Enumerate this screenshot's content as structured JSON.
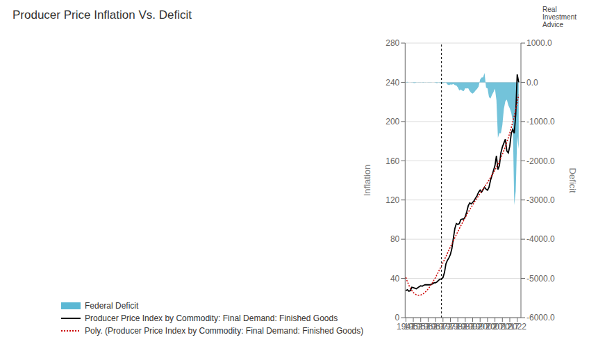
{
  "chart_data": {
    "type": "line",
    "title": "Producer Price Inflation Vs. Deficit",
    "ylabel": "Inflation",
    "y2label": "Deficit",
    "xlim": [
      1946.5,
      2024.5
    ],
    "xticks": [
      1947,
      1952,
      1957,
      1962,
      1967,
      1972,
      1977,
      1982,
      1987,
      1992,
      1997,
      2002,
      2007,
      2012,
      2017,
      2022
    ],
    "ylim": [
      0,
      280
    ],
    "yticks": [
      0,
      40,
      80,
      120,
      160,
      200,
      240,
      280
    ],
    "y2lim": [
      -6000,
      1000
    ],
    "y2ticks": [
      {
        "value": 1000,
        "label": "1000.0"
      },
      {
        "value": 0,
        "label": "0.0"
      },
      {
        "value": -1000,
        "label": "-1000.0"
      },
      {
        "value": -2000,
        "label": "-2000.0"
      },
      {
        "value": -3000,
        "label": "-3000.0"
      },
      {
        "value": -4000,
        "label": "-4000.0"
      },
      {
        "value": -5000,
        "label": "-5000.0"
      },
      {
        "value": -6000,
        "label": "-6000.0"
      }
    ],
    "grid": true,
    "legend": "lower left",
    "vline": 1971,
    "annotations": [
      "Real\nInvestment\nAdvice"
    ],
    "x": [
      1947,
      1948,
      1949,
      1950,
      1951,
      1952,
      1953,
      1954,
      1955,
      1956,
      1957,
      1958,
      1959,
      1960,
      1961,
      1962,
      1963,
      1964,
      1965,
      1966,
      1967,
      1968,
      1969,
      1970,
      1971,
      1972,
      1973,
      1974,
      1975,
      1976,
      1977,
      1978,
      1979,
      1980,
      1981,
      1982,
      1983,
      1984,
      1985,
      1986,
      1987,
      1988,
      1989,
      1990,
      1991,
      1992,
      1993,
      1994,
      1995,
      1996,
      1997,
      1998,
      1999,
      2000,
      2001,
      2002,
      2003,
      2004,
      2005,
      2006,
      2007,
      2008,
      2009,
      2010,
      2011,
      2012,
      2013,
      2014,
      2015,
      2016,
      2017,
      2018,
      2019,
      2020,
      2021,
      2022,
      2023
    ],
    "series": [
      {
        "name": "Federal Deficit",
        "type": "area",
        "axis": "y2",
        "color": "#5bb8d4",
        "values": [
          4,
          12,
          0,
          -2,
          5,
          -14,
          -20,
          -5,
          3,
          4,
          3,
          -6,
          -12,
          1,
          -3,
          -7,
          -6,
          -6,
          -1,
          -3,
          -8,
          -25,
          8,
          -23,
          -23,
          -23,
          -15,
          -6,
          -53,
          -74,
          -54,
          -59,
          -41,
          -74,
          -79,
          -128,
          -208,
          -185,
          -212,
          -221,
          -150,
          -155,
          -153,
          -221,
          -269,
          -290,
          -255,
          -203,
          -164,
          -107,
          69,
          125,
          126,
          236,
          -133,
          -158,
          -378,
          -413,
          -319,
          -248,
          -161,
          -459,
          -1413,
          -1294,
          -1299,
          -1087,
          -680,
          -485,
          -442,
          -585,
          -665,
          -779,
          -984,
          -3131,
          -2775,
          -1375,
          -1700
        ]
      },
      {
        "name": "Producer Price Index by Commodity: Final Demand: Finished Goods",
        "type": "line",
        "color": "#000000",
        "values": [
          27.5,
          28.5,
          27.0,
          27.5,
          31.0,
          30.5,
          30.0,
          29.5,
          30.5,
          31.5,
          32.5,
          32.0,
          33.0,
          33.5,
          33.5,
          33.5,
          33.5,
          34.0,
          34.5,
          35.5,
          35.5,
          36.5,
          38.0,
          39.3,
          39.5,
          41.0,
          46.0,
          55.0,
          58.5,
          61.0,
          64.5,
          70.5,
          81.0,
          91.0,
          96.0,
          95.0,
          96.0,
          100.0,
          100.5,
          100.5,
          103.0,
          108.0,
          114.0,
          117.0,
          116.0,
          117.5,
          119.5,
          122.0,
          124.5,
          128.0,
          130.0,
          128.0,
          130.5,
          133.0,
          131.0,
          130.0,
          133.0,
          140.0,
          145.0,
          150.0,
          155.0,
          165.0,
          151.0,
          155.0,
          168.0,
          174.0,
          178.0,
          182.0,
          170.0,
          168.0,
          175.0,
          188.0,
          192.0,
          188.0,
          207.0,
          248.0,
          240.0
        ]
      },
      {
        "name": "Poly. (Producer Price Index by Commodity: Final Demand: Finished Goods)",
        "type": "line",
        "color": "#cc0000",
        "line_style": "dotted",
        "values": [
          41.03,
          36.76,
          33.13,
          30.11,
          27.65,
          25.74,
          24.32,
          23.38,
          22.88,
          22.79,
          23.08,
          23.72,
          24.69,
          25.96,
          27.5,
          29.29,
          31.3,
          33.52,
          35.92,
          38.47,
          41.17,
          43.99,
          46.91,
          49.91,
          52.99,
          56.12,
          59.29,
          62.49,
          65.7,
          68.91,
          72.12,
          75.31,
          78.47,
          81.6,
          84.69,
          87.73,
          90.72,
          93.65,
          96.53,
          99.35,
          102.1,
          104.79,
          107.42,
          110.0,
          112.51,
          114.97,
          117.38,
          119.75,
          122.08,
          124.38,
          126.66,
          128.92,
          131.18,
          133.45,
          135.74,
          138.06,
          140.43,
          142.86,
          145.37,
          147.97,
          150.68,
          153.52,
          156.51,
          159.67,
          163.02,
          166.58,
          170.38,
          174.44,
          178.78,
          183.44,
          188.43,
          193.78,
          199.54,
          205.71,
          212.34,
          219.46,
          227.1
        ]
      }
    ]
  }
}
